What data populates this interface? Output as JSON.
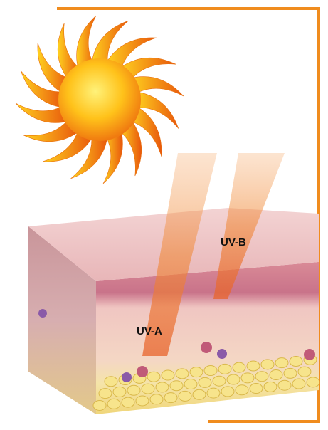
{
  "labels": {
    "uvb": "UV-B",
    "uva": "UV-A"
  }
}
